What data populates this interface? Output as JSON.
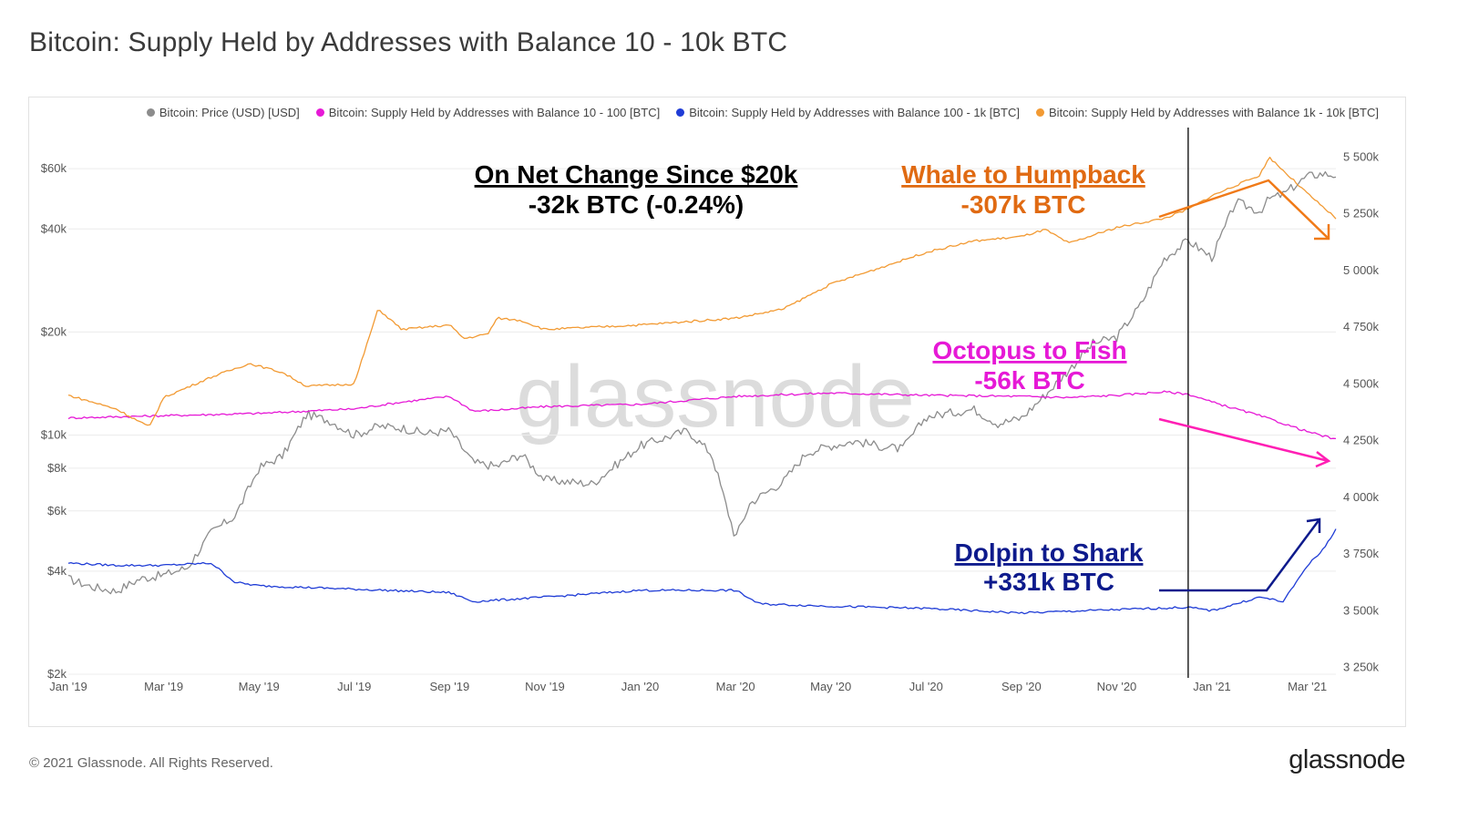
{
  "title": "Bitcoin: Supply Held by Addresses with Balance 10 - 10k BTC",
  "footer": {
    "copyright": "© 2021 Glassnode. All Rights Reserved.",
    "logo": "glassnode"
  },
  "watermark": "glassnode",
  "colors": {
    "price": "#8c8c8c",
    "s10_100": "#e619d6",
    "s100_1k": "#1f3cd6",
    "s1k_10k": "#f29a33",
    "divider": "#000000"
  },
  "legend": [
    {
      "label": "Bitcoin: Price (USD) [USD]",
      "color": "#8c8c8c"
    },
    {
      "label": "Bitcoin: Supply Held by Addresses with Balance 10 - 100 [BTC]",
      "color": "#e619d6"
    },
    {
      "label": "Bitcoin: Supply Held by Addresses with Balance 100 - 1k [BTC]",
      "color": "#1f3cd6"
    },
    {
      "label": "Bitcoin: Supply Held by Addresses with Balance 1k - 10k [BTC]",
      "color": "#f29a33"
    }
  ],
  "annotations": {
    "net": {
      "line1": "On Net Change Since $20k",
      "line2": "-32k BTC (-0.24%)",
      "color": "#000000"
    },
    "whale": {
      "line1": "Whale to Humpback",
      "line2": "-307k BTC",
      "color": "#e06a12"
    },
    "octopus": {
      "line1": "Octopus to Fish",
      "line2": "-56k BTC",
      "color": "#e619d6"
    },
    "dolphin": {
      "line1": "Dolpin to Shark",
      "line2": "+331k BTC",
      "color": "#0d1a8c"
    }
  },
  "chart_data": {
    "type": "line",
    "title": "Bitcoin: Supply Held by Addresses with Balance 10 - 10k BTC",
    "x_ticks": [
      "Jan '19",
      "Mar '19",
      "May '19",
      "Jul '19",
      "Sep '19",
      "Nov '19",
      "Jan '20",
      "Mar '20",
      "May '20",
      "Jul '20",
      "Sep '20",
      "Nov '20",
      "Jan '21",
      "Mar '21"
    ],
    "x_range_months": [
      0,
      26.6
    ],
    "divider_month": 23.5,
    "y_left": {
      "scale": "log",
      "range": [
        2000,
        70000
      ],
      "ticks": [
        "$60k",
        "$40k",
        "$20k",
        "$10k",
        "$8k",
        "$6k",
        "$4k",
        "$2k"
      ],
      "tick_values": [
        60000,
        40000,
        20000,
        10000,
        8000,
        6000,
        4000,
        2000
      ]
    },
    "y_right": {
      "scale": "linear",
      "range": [
        3220000,
        5550000
      ],
      "ticks": [
        "5 500k",
        "5 250k",
        "5 000k",
        "4 750k",
        "4 500k",
        "4 250k",
        "4 000k",
        "3 750k",
        "3 500k",
        "3 250k"
      ],
      "tick_values": [
        5500000,
        5250000,
        5000000,
        4750000,
        4500000,
        4250000,
        4000000,
        3750000,
        3500000,
        3250000
      ]
    },
    "series": [
      {
        "name": "Bitcoin: Price (USD) [USD]",
        "axis": "left",
        "color": "#8c8c8c",
        "months": [
          0,
          0.5,
          1,
          1.5,
          2,
          2.5,
          3,
          3.5,
          4,
          4.5,
          5,
          5.5,
          6,
          6.5,
          7,
          7.5,
          8,
          8.5,
          9,
          9.5,
          10,
          10.5,
          11,
          11.5,
          12,
          12.5,
          13,
          13.5,
          14,
          14.3,
          14.5,
          15,
          15.5,
          16,
          16.5,
          17,
          17.5,
          18,
          18.5,
          19,
          19.5,
          20,
          20.5,
          21,
          21.5,
          22,
          22.5,
          23,
          23.5,
          24,
          24.5,
          25,
          25.2,
          25.5,
          26,
          26.3,
          26.6
        ],
        "values": [
          3800,
          3600,
          3500,
          3800,
          3900,
          4100,
          5200,
          5800,
          8000,
          8700,
          11500,
          11000,
          10000,
          10600,
          10500,
          10100,
          10300,
          8300,
          8100,
          8800,
          7400,
          7300,
          7200,
          8200,
          9300,
          9800,
          10300,
          8800,
          5000,
          6300,
          6600,
          7300,
          8900,
          9300,
          9600,
          9300,
          9100,
          11300,
          11600,
          11900,
          10800,
          11200,
          13100,
          15500,
          18500,
          19300,
          24000,
          32800,
          37000,
          33000,
          48000,
          45000,
          49000,
          50500,
          57000,
          58000,
          57500
        ]
      },
      {
        "name": "Bitcoin: Supply Held by Addresses with Balance 10 - 100 [BTC]",
        "axis": "right",
        "color": "#e619d6",
        "months": [
          0,
          2,
          4,
          6,
          7,
          8,
          8.5,
          9,
          10,
          12,
          14,
          16,
          18,
          20,
          21,
          22,
          23,
          23.5,
          24,
          25,
          26,
          26.6
        ],
        "values": [
          4350000,
          4360000,
          4370000,
          4390000,
          4420000,
          4445000,
          4380000,
          4385000,
          4400000,
          4410000,
          4445000,
          4460000,
          4450000,
          4445000,
          4440000,
          4450000,
          4465000,
          4455000,
          4420000,
          4360000,
          4290000,
          4255000
        ]
      },
      {
        "name": "Bitcoin: Supply Held by Addresses with Balance 100 - 1k [BTC]",
        "axis": "right",
        "color": "#1f3cd6",
        "months": [
          0,
          1,
          2,
          3,
          3.5,
          4,
          6,
          8,
          8.5,
          10,
          12,
          14,
          14.5,
          16,
          18,
          20,
          22,
          23.5,
          24,
          25,
          25.5,
          26,
          26.3,
          26.6
        ],
        "values": [
          3710000,
          3700000,
          3700000,
          3710000,
          3625000,
          3610000,
          3595000,
          3580000,
          3540000,
          3560000,
          3590000,
          3590000,
          3530000,
          3520000,
          3510000,
          3490000,
          3505000,
          3515000,
          3500000,
          3560000,
          3540000,
          3700000,
          3760000,
          3860000
        ]
      },
      {
        "name": "Bitcoin: Supply Held by Addresses with Balance 1k - 10k [BTC]",
        "axis": "right",
        "color": "#f29a33",
        "months": [
          0,
          1,
          1.7,
          2,
          3,
          3.8,
          4.5,
          5,
          6,
          6.5,
          7,
          8,
          8.3,
          8.8,
          9,
          9.5,
          10,
          12,
          14,
          15,
          16,
          17,
          18,
          19,
          20,
          20.5,
          21,
          22,
          23,
          23.5,
          24,
          25,
          25.2,
          25.5,
          26,
          26.6
        ],
        "values": [
          4450000,
          4390000,
          4310000,
          4440000,
          4530000,
          4590000,
          4550000,
          4490000,
          4500000,
          4830000,
          4740000,
          4760000,
          4700000,
          4720000,
          4790000,
          4780000,
          4740000,
          4760000,
          4790000,
          4830000,
          4940000,
          5010000,
          5080000,
          5130000,
          5150000,
          5180000,
          5120000,
          5190000,
          5230000,
          5270000,
          5330000,
          5420000,
          5500000,
          5440000,
          5340000,
          5230000
        ]
      }
    ]
  }
}
